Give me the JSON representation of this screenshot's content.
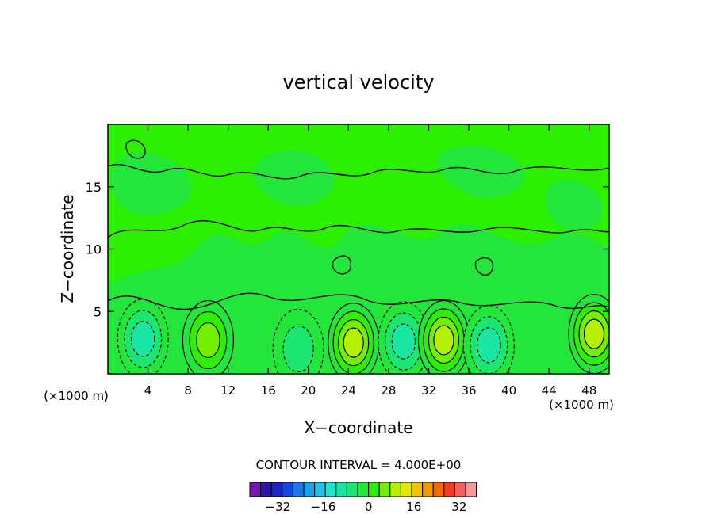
{
  "chart_data": {
    "type": "heatmap",
    "title": "vertical velocity",
    "xlabel": "X−coordinate",
    "ylabel": "Z−coordinate",
    "x_unit_left": "(×1000 m)",
    "x_unit_right": "(×1000 m)",
    "xlim": [
      0,
      50
    ],
    "ylim": [
      0,
      20
    ],
    "x_ticks": [
      4,
      8,
      12,
      16,
      20,
      24,
      28,
      32,
      36,
      40,
      44,
      48
    ],
    "y_ticks": [
      5,
      10,
      15
    ],
    "contour_interval_label": "CONTOUR INTERVAL = 4.000E+00",
    "colorbar": {
      "levels": [
        -40,
        -36,
        -32,
        -28,
        -24,
        -20,
        -16,
        -12,
        -8,
        -4,
        0,
        4,
        8,
        12,
        16,
        20,
        24,
        28,
        32,
        36,
        40
      ],
      "colors": [
        "#7a14b4",
        "#2a1aa6",
        "#1a24c8",
        "#1448e0",
        "#1a78ee",
        "#1aa0ee",
        "#1ac4e6",
        "#1ae6d2",
        "#1ae6a4",
        "#1ae670",
        "#22e63a",
        "#2cf000",
        "#72f000",
        "#b4f000",
        "#e6e600",
        "#f4c400",
        "#f49a00",
        "#f46a00",
        "#f43c1e",
        "#f46060",
        "#f49898"
      ],
      "tick_labels": [
        "−32",
        "−16",
        "0",
        "16",
        "32"
      ],
      "tick_values": [
        -32,
        -16,
        0,
        16,
        32
      ]
    },
    "features": [
      {
        "x": 3.5,
        "z": 2.8,
        "value": -6
      },
      {
        "x": 10,
        "z": 2.7,
        "value": 7
      },
      {
        "x": 19,
        "z": 2.0,
        "value": -4
      },
      {
        "x": 24.5,
        "z": 2.5,
        "value": 10
      },
      {
        "x": 29.5,
        "z": 2.6,
        "value": -7
      },
      {
        "x": 33.5,
        "z": 2.7,
        "value": 12
      },
      {
        "x": 38,
        "z": 2.3,
        "value": -6
      },
      {
        "x": 48.5,
        "z": 3.2,
        "value": 10
      }
    ],
    "grid": false,
    "legend_placement": "bottom"
  }
}
